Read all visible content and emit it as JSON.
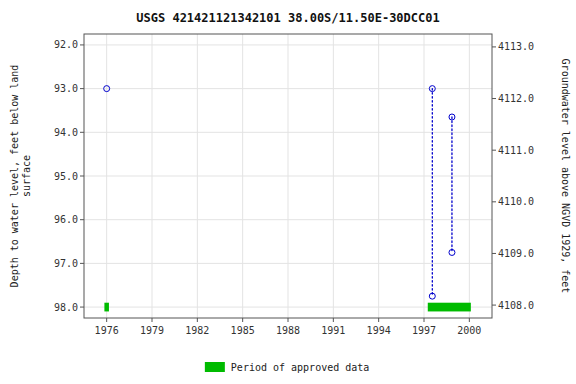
{
  "chart_data": {
    "type": "scatter",
    "title": "USGS 421421121342101 38.00S/11.50E-30DCC01",
    "ylabel": "Depth to water level, feet below land\nsurface",
    "y2label": "Groundwater level above NGVD 1929, feet",
    "xlim": [
      1974.5,
      2001.5
    ],
    "xticks": [
      1976,
      1979,
      1982,
      1985,
      1988,
      1991,
      1994,
      1997,
      2000
    ],
    "ylim": [
      98.25,
      91.75
    ],
    "yticks": [
      {
        "value": 92.0,
        "label": "92.0"
      },
      {
        "value": 93.0,
        "label": "93.0"
      },
      {
        "value": 94.0,
        "label": "94.0"
      },
      {
        "value": 95.0,
        "label": "95.0"
      },
      {
        "value": 96.0,
        "label": "96.0"
      },
      {
        "value": 97.0,
        "label": "97.0"
      },
      {
        "value": 98.0,
        "label": "98.0"
      }
    ],
    "y2lim": [
      4107.75,
      4113.25
    ],
    "y2ticks": [
      {
        "value": 4108.0,
        "label": "4108.0"
      },
      {
        "value": 4109.0,
        "label": "4109.0"
      },
      {
        "value": 4110.0,
        "label": "4110.0"
      },
      {
        "value": 4111.0,
        "label": "4111.0"
      },
      {
        "value": 4112.0,
        "label": "4112.0"
      },
      {
        "value": 4113.0,
        "label": "4113.0"
      }
    ],
    "grid": true,
    "legend": "bottom",
    "series": [
      {
        "type": "line",
        "line_style": "dotted",
        "marker": "circle-open",
        "color": "#0000cc",
        "x": [
          1997.55,
          1997.55
        ],
        "values": [
          93.0,
          97.75
        ]
      },
      {
        "type": "line",
        "line_style": "dotted",
        "marker": "circle-open",
        "color": "#0000cc",
        "x": [
          1998.85,
          1998.85
        ],
        "values": [
          93.65,
          96.75
        ]
      },
      {
        "type": "scatter",
        "marker": "circle-open",
        "color": "#0000cc",
        "x": [
          1976.0
        ],
        "values": [
          93.0
        ]
      },
      {
        "type": "period",
        "name": "Period of approved data",
        "color": "#00bb00",
        "x_start": [
          1975.85,
          1997.25
        ],
        "x_end": [
          1976.15,
          2000.1
        ],
        "values": [
          98.0,
          98.0
        ],
        "y_half_width": 0.1
      }
    ]
  }
}
